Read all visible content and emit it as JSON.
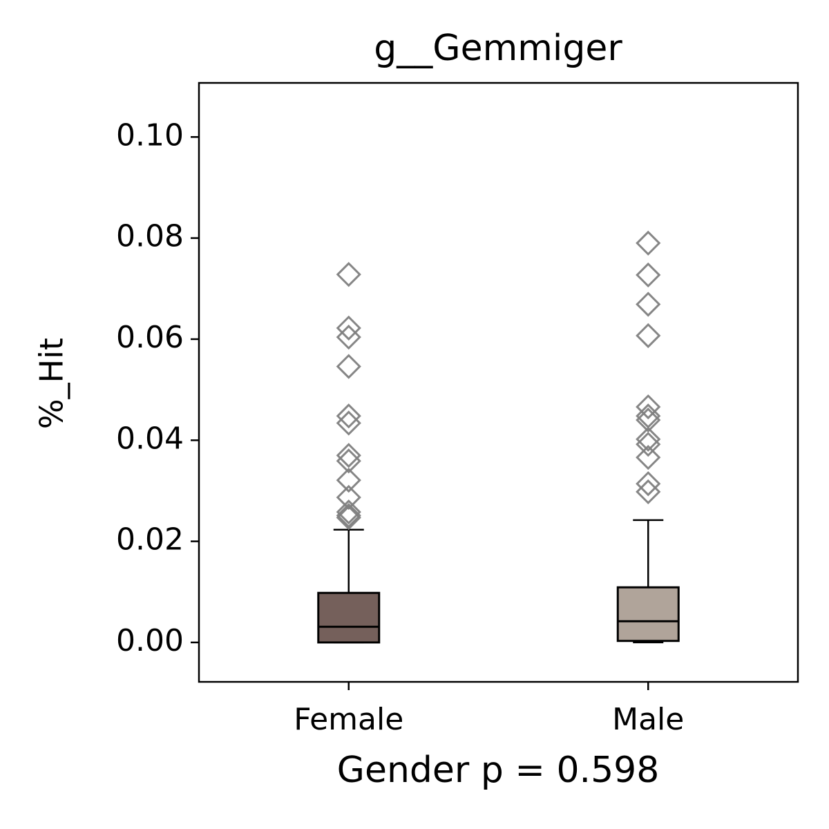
{
  "chart_data": {
    "type": "box",
    "title": "g__Gemmiger",
    "x_label": "Gender p = 0.598",
    "y_label": "%_Hit",
    "categories": [
      "Female",
      "Male"
    ],
    "boxes": [
      {
        "whislo": 0,
        "q1": 0,
        "med": 0.0031,
        "q3": 0.0098,
        "whishi": 0.0223,
        "color": "#75605b",
        "fliers": [
          0.0728,
          0.0622,
          0.0604,
          0.0546,
          0.0448,
          0.0434,
          0.037,
          0.0359,
          0.0321,
          0.0287,
          0.0258,
          0.0251,
          0.0247
        ]
      },
      {
        "whislo": 0,
        "q1": 0.0003,
        "med": 0.0042,
        "q3": 0.0109,
        "whishi": 0.0242,
        "color": "#b0a49a",
        "fliers": [
          0.079,
          0.0727,
          0.0669,
          0.0607,
          0.0466,
          0.0448,
          0.044,
          0.0402,
          0.0392,
          0.0366,
          0.0314,
          0.0298
        ]
      }
    ],
    "flier_color": "#808080",
    "ylim": [
      -0.0078,
      0.1107
    ],
    "yticks": [
      {
        "value": 0,
        "label": "0.00"
      },
      {
        "value": 0.02,
        "label": "0.02"
      },
      {
        "value": 0.04,
        "label": "0.04"
      },
      {
        "value": 0.06,
        "label": "0.06"
      },
      {
        "value": 0.08,
        "label": "0.08"
      },
      {
        "value": 0.1,
        "label": "0.10"
      }
    ]
  }
}
